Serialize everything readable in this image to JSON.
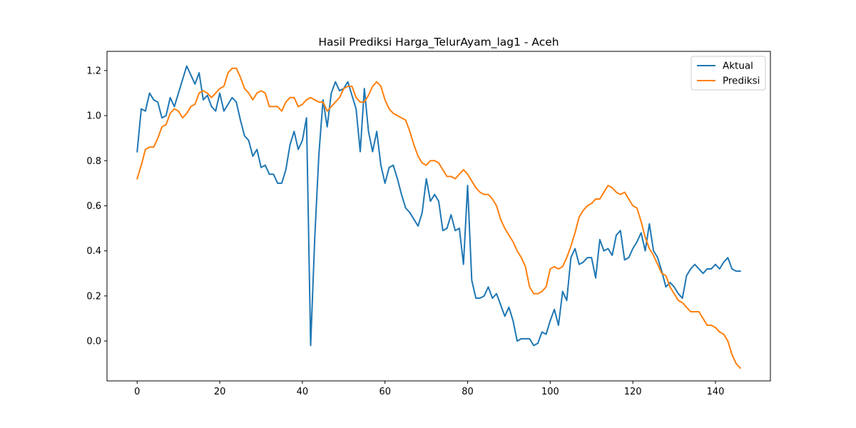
{
  "chart_data": {
    "type": "line",
    "title": "Hasil Prediksi Harga_TelurAyam_lag1 - Aceh",
    "xlabel": "",
    "ylabel": "",
    "xlim": [
      -7.3,
      153.3
    ],
    "ylim": [
      -0.177,
      1.285
    ],
    "x_ticks": [
      0,
      20,
      40,
      60,
      80,
      100,
      120,
      140
    ],
    "y_ticks": [
      0.0,
      0.2,
      0.4,
      0.6,
      0.8,
      1.0,
      1.2
    ],
    "grid": false,
    "legend_position": "upper right",
    "series": [
      {
        "name": "Aktual",
        "color": "#1f77b4",
        "values": [
          0.84,
          1.03,
          1.02,
          1.1,
          1.07,
          1.06,
          0.99,
          1.0,
          1.08,
          1.04,
          1.1,
          1.16,
          1.22,
          1.18,
          1.14,
          1.19,
          1.07,
          1.09,
          1.04,
          1.02,
          1.1,
          1.02,
          1.05,
          1.08,
          1.06,
          0.98,
          0.91,
          0.89,
          0.82,
          0.85,
          0.77,
          0.78,
          0.74,
          0.74,
          0.7,
          0.7,
          0.76,
          0.87,
          0.93,
          0.85,
          0.89,
          0.99,
          -0.02,
          0.46,
          0.83,
          1.07,
          0.95,
          1.1,
          1.15,
          1.11,
          1.12,
          1.15,
          1.09,
          1.03,
          0.84,
          1.12,
          0.93,
          0.84,
          0.93,
          0.78,
          0.7,
          0.77,
          0.78,
          0.72,
          0.65,
          0.59,
          0.57,
          0.54,
          0.51,
          0.57,
          0.72,
          0.62,
          0.65,
          0.62,
          0.49,
          0.5,
          0.56,
          0.49,
          0.5,
          0.34,
          0.69,
          0.27,
          0.19,
          0.19,
          0.2,
          0.24,
          0.19,
          0.21,
          0.16,
          0.11,
          0.15,
          0.09,
          0.0,
          0.01,
          0.01,
          0.01,
          -0.02,
          -0.01,
          0.04,
          0.03,
          0.09,
          0.14,
          0.07,
          0.22,
          0.18,
          0.37,
          0.41,
          0.34,
          0.35,
          0.37,
          0.37,
          0.28,
          0.45,
          0.4,
          0.41,
          0.38,
          0.47,
          0.49,
          0.36,
          0.37,
          0.41,
          0.44,
          0.48,
          0.4,
          0.52,
          0.4,
          0.37,
          0.31,
          0.24,
          0.26,
          0.24,
          0.21,
          0.19,
          0.29,
          0.32,
          0.34,
          0.32,
          0.3,
          0.32,
          0.32,
          0.34,
          0.32,
          0.35,
          0.37,
          0.32,
          0.31,
          0.31
        ]
      },
      {
        "name": "Prediksi",
        "color": "#ff7f0e",
        "values": [
          0.72,
          0.78,
          0.85,
          0.86,
          0.86,
          0.9,
          0.95,
          0.96,
          1.01,
          1.03,
          1.02,
          0.99,
          1.01,
          1.04,
          1.05,
          1.1,
          1.11,
          1.1,
          1.08,
          1.1,
          1.12,
          1.13,
          1.19,
          1.21,
          1.21,
          1.17,
          1.12,
          1.1,
          1.07,
          1.1,
          1.11,
          1.1,
          1.04,
          1.04,
          1.04,
          1.02,
          1.06,
          1.08,
          1.08,
          1.04,
          1.05,
          1.07,
          1.08,
          1.07,
          1.06,
          1.06,
          1.02,
          1.04,
          1.06,
          1.08,
          1.12,
          1.13,
          1.13,
          1.08,
          1.06,
          1.06,
          1.09,
          1.13,
          1.15,
          1.13,
          1.07,
          1.03,
          1.01,
          1.0,
          0.99,
          0.98,
          0.93,
          0.87,
          0.82,
          0.79,
          0.78,
          0.8,
          0.8,
          0.79,
          0.76,
          0.73,
          0.73,
          0.72,
          0.74,
          0.76,
          0.74,
          0.71,
          0.68,
          0.66,
          0.65,
          0.65,
          0.63,
          0.6,
          0.54,
          0.5,
          0.47,
          0.44,
          0.4,
          0.37,
          0.33,
          0.24,
          0.21,
          0.21,
          0.22,
          0.24,
          0.32,
          0.33,
          0.32,
          0.33,
          0.37,
          0.42,
          0.48,
          0.55,
          0.58,
          0.6,
          0.61,
          0.63,
          0.63,
          0.66,
          0.69,
          0.68,
          0.66,
          0.65,
          0.66,
          0.63,
          0.6,
          0.59,
          0.53,
          0.46,
          0.41,
          0.38,
          0.34,
          0.3,
          0.29,
          0.24,
          0.21,
          0.18,
          0.17,
          0.15,
          0.13,
          0.13,
          0.13,
          0.1,
          0.07,
          0.07,
          0.06,
          0.04,
          0.03,
          0.0,
          -0.06,
          -0.1,
          -0.12
        ]
      }
    ]
  }
}
